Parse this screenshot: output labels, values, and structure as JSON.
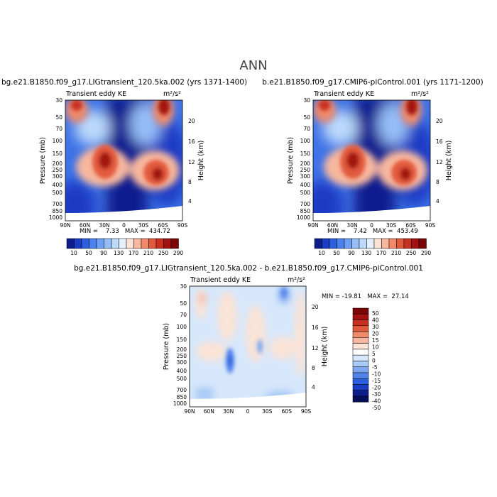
{
  "page": {
    "title": "ANN"
  },
  "panels": [
    {
      "title": "bg.e21.B1850.f09_g17.LIGtransient_120.5ka.002 (yrs 1371-1400)",
      "left_label": "Transient eddy KE",
      "right_label": "m²/s²",
      "stats": "MIN =    7.33   MAX =  434.72"
    },
    {
      "title": "b.e21.B1850.f09_g17.CMIP6-piControl.001 (yrs 1171-1200)",
      "left_label": "Transient eddy KE",
      "right_label": "m²/s²",
      "stats": "MIN =    7.42   MAX =  453.49"
    },
    {
      "title": "bg.e21.B1850.f09_g17.LIGtransient_120.5ka.002 - b.e21.B1850.f09_g17.CMIP6-piControl.001",
      "left_label": "Transient eddy KE",
      "right_label": "m²/s²",
      "stats": "MIN = -19.81   MAX =  27.14"
    }
  ],
  "chart_data": [
    {
      "type": "heatmap",
      "title": "bg.e21.B1850.f09_g17.LIGtransient_120.5ka.002 (yrs 1371-1400)",
      "variable": "Transient eddy KE",
      "units": "m²/s²",
      "x_ticks": [
        "90N",
        "60N",
        "30N",
        "0",
        "30S",
        "60S",
        "90S"
      ],
      "y_ticks": [
        "30",
        "50",
        "70",
        "100",
        "150",
        "200",
        "250",
        "300",
        "400",
        "500",
        "700",
        "850",
        "1000"
      ],
      "y_ticks_right": [
        "20",
        "16",
        "12",
        "8",
        "4"
      ],
      "xlabel": "",
      "ylabel": "Pressure (mb)",
      "ylabel_right": "Height (km)",
      "min": 7.33,
      "max": 434.72,
      "colorbar_levels": [
        "10",
        "50",
        "90",
        "130",
        "170",
        "210",
        "250",
        "290"
      ],
      "maxima": [
        {
          "lat": 30,
          "pressure": 200,
          "value": 434.72
        },
        {
          "lat": -48,
          "pressure": 250,
          "value": 380
        },
        {
          "lat": 72,
          "pressure": 30,
          "value": 280
        },
        {
          "lat": -60,
          "pressure": 30,
          "value": 320
        }
      ]
    },
    {
      "type": "heatmap",
      "title": "b.e21.B1850.f09_g17.CMIP6-piControl.001 (yrs 1171-1200)",
      "variable": "Transient eddy KE",
      "units": "m²/s²",
      "x_ticks": [
        "90N",
        "60N",
        "30N",
        "0",
        "30S",
        "60S",
        "90S"
      ],
      "y_ticks": [
        "30",
        "50",
        "70",
        "100",
        "150",
        "200",
        "250",
        "300",
        "400",
        "500",
        "700",
        "850",
        "1000"
      ],
      "y_ticks_right": [
        "20",
        "16",
        "12",
        "8",
        "4"
      ],
      "xlabel": "",
      "ylabel": "Pressure (mb)",
      "ylabel_right": "Height (km)",
      "min": 7.42,
      "max": 453.49,
      "colorbar_levels": [
        "10",
        "50",
        "90",
        "130",
        "170",
        "210",
        "250",
        "290"
      ],
      "maxima": [
        {
          "lat": 30,
          "pressure": 200,
          "value": 453.49
        },
        {
          "lat": -48,
          "pressure": 250,
          "value": 390
        },
        {
          "lat": 72,
          "pressure": 30,
          "value": 290
        },
        {
          "lat": -60,
          "pressure": 30,
          "value": 330
        }
      ]
    },
    {
      "type": "heatmap",
      "title": "bg.e21.B1850.f09_g17.LIGtransient_120.5ka.002 - b.e21.B1850.f09_g17.CMIP6-piControl.001",
      "variable": "Transient eddy KE",
      "units": "m²/s²",
      "x_ticks": [
        "90N",
        "60N",
        "30N",
        "0",
        "30S",
        "60S",
        "90S"
      ],
      "y_ticks": [
        "30",
        "50",
        "70",
        "100",
        "150",
        "200",
        "250",
        "300",
        "400",
        "500",
        "700",
        "850",
        "1000"
      ],
      "y_ticks_right": [
        "20",
        "16",
        "12",
        "8",
        "4"
      ],
      "xlabel": "",
      "ylabel": "Pressure (mb)",
      "ylabel_right": "Height (km)",
      "min": -19.81,
      "max": 27.14,
      "colorbar_levels": [
        "50",
        "40",
        "30",
        "20",
        "15",
        "10",
        "5",
        "0",
        "-5",
        "-10",
        "-15",
        "-20",
        "-30",
        "-40",
        "-50"
      ],
      "anomalies": [
        {
          "lat": 30,
          "pressure": 300,
          "value": -19.8
        },
        {
          "lat": -55,
          "pressure": 40,
          "value": -12
        },
        {
          "lat": 70,
          "pressure": 40,
          "value": 8
        },
        {
          "lat": -50,
          "pressure": 200,
          "value": 7
        }
      ]
    }
  ],
  "colors": {
    "seq_scale": [
      "#0b1e8c",
      "#1a3bc4",
      "#2b5fe0",
      "#4a80f0",
      "#6e9ff5",
      "#95bef8",
      "#bcd9fb",
      "#e6f0fd",
      "#fbe3d6",
      "#f7b79e",
      "#f08a6a",
      "#e25a3d",
      "#c83020",
      "#a31210",
      "#7a0606"
    ],
    "diff_scale": [
      "#7a0606",
      "#a31210",
      "#c83020",
      "#e25a3d",
      "#f08a6a",
      "#f7b79e",
      "#fbe3d6",
      "#ffffff",
      "#d6e7fb",
      "#a9c9f6",
      "#7ea8f1",
      "#5283e8",
      "#2b5fe0",
      "#1a3bc4",
      "#0b1e8c",
      "#050f5a"
    ]
  }
}
